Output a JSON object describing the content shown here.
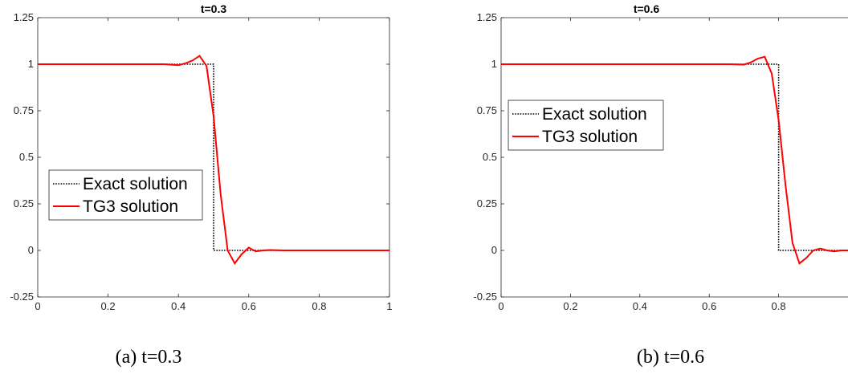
{
  "chart_data": [
    {
      "type": "line",
      "title": "t=0.3",
      "caption": "(a)  t=0.3",
      "xlabel": "",
      "ylabel": "",
      "xlim": [
        0,
        1
      ],
      "ylim": [
        -0.25,
        1.25
      ],
      "xticks": [
        0,
        0.2,
        0.4,
        0.6,
        0.8,
        1
      ],
      "xtick_labels": [
        "0",
        "0.2",
        "0.4",
        "0.6",
        "0.8",
        "1"
      ],
      "yticks": [
        -0.25,
        0,
        0.25,
        0.5,
        0.75,
        1,
        1.25
      ],
      "ytick_labels": [
        "-0.25",
        "0",
        "0.25",
        "0.5",
        "0.75",
        "1",
        "1.25"
      ],
      "legend": {
        "placement": "center-left",
        "entries": [
          "Exact solution",
          "TG3 solution"
        ]
      },
      "series": [
        {
          "name": "Exact solution",
          "color": "#000000",
          "style": "dotted",
          "x": [
            0,
            0.5,
            0.5,
            1
          ],
          "y": [
            1,
            1,
            0,
            0
          ]
        },
        {
          "name": "TG3 solution",
          "color": "#ff0000",
          "style": "solid",
          "x": [
            0,
            0.36,
            0.4,
            0.42,
            0.44,
            0.46,
            0.48,
            0.5,
            0.52,
            0.54,
            0.56,
            0.58,
            0.6,
            0.62,
            0.64,
            0.66,
            0.7,
            1
          ],
          "y": [
            1,
            1,
            0.995,
            1.005,
            1.02,
            1.045,
            0.99,
            0.72,
            0.3,
            0.0,
            -0.07,
            -0.02,
            0.015,
            -0.005,
            0.0,
            0.002,
            0,
            0
          ]
        }
      ]
    },
    {
      "type": "line",
      "title": "t=0.6",
      "caption": "(b)  t=0.6",
      "xlabel": "",
      "ylabel": "",
      "xlim": [
        0,
        1
      ],
      "ylim": [
        -0.25,
        1.25
      ],
      "xticks": [
        0,
        0.2,
        0.4,
        0.6,
        0.8
      ],
      "xtick_labels": [
        "0",
        "0.2",
        "0.4",
        "0.6",
        "0.8"
      ],
      "yticks": [
        -0.25,
        0,
        0.25,
        0.5,
        0.75,
        1,
        1.25
      ],
      "ytick_labels": [
        "-0.25",
        "0",
        "0.25",
        "0.5",
        "0.75",
        "1",
        "1.25"
      ],
      "legend": {
        "placement": "upper-left",
        "entries": [
          "Exact solution",
          "TG3 solution"
        ]
      },
      "series": [
        {
          "name": "Exact solution",
          "color": "#000000",
          "style": "dotted",
          "x": [
            0,
            0.8,
            0.8,
            1
          ],
          "y": [
            1,
            1,
            0,
            0
          ]
        },
        {
          "name": "TG3 solution",
          "color": "#ff0000",
          "style": "solid",
          "x": [
            0,
            0.66,
            0.7,
            0.72,
            0.74,
            0.76,
            0.78,
            0.8,
            0.82,
            0.84,
            0.86,
            0.88,
            0.9,
            0.92,
            0.94,
            0.96,
            0.98,
            1
          ],
          "y": [
            1,
            1,
            0.998,
            1.01,
            1.03,
            1.04,
            0.95,
            0.7,
            0.35,
            0.04,
            -0.07,
            -0.04,
            0.0,
            0.01,
            0.0,
            -0.005,
            0.0,
            0.0
          ]
        }
      ]
    }
  ]
}
